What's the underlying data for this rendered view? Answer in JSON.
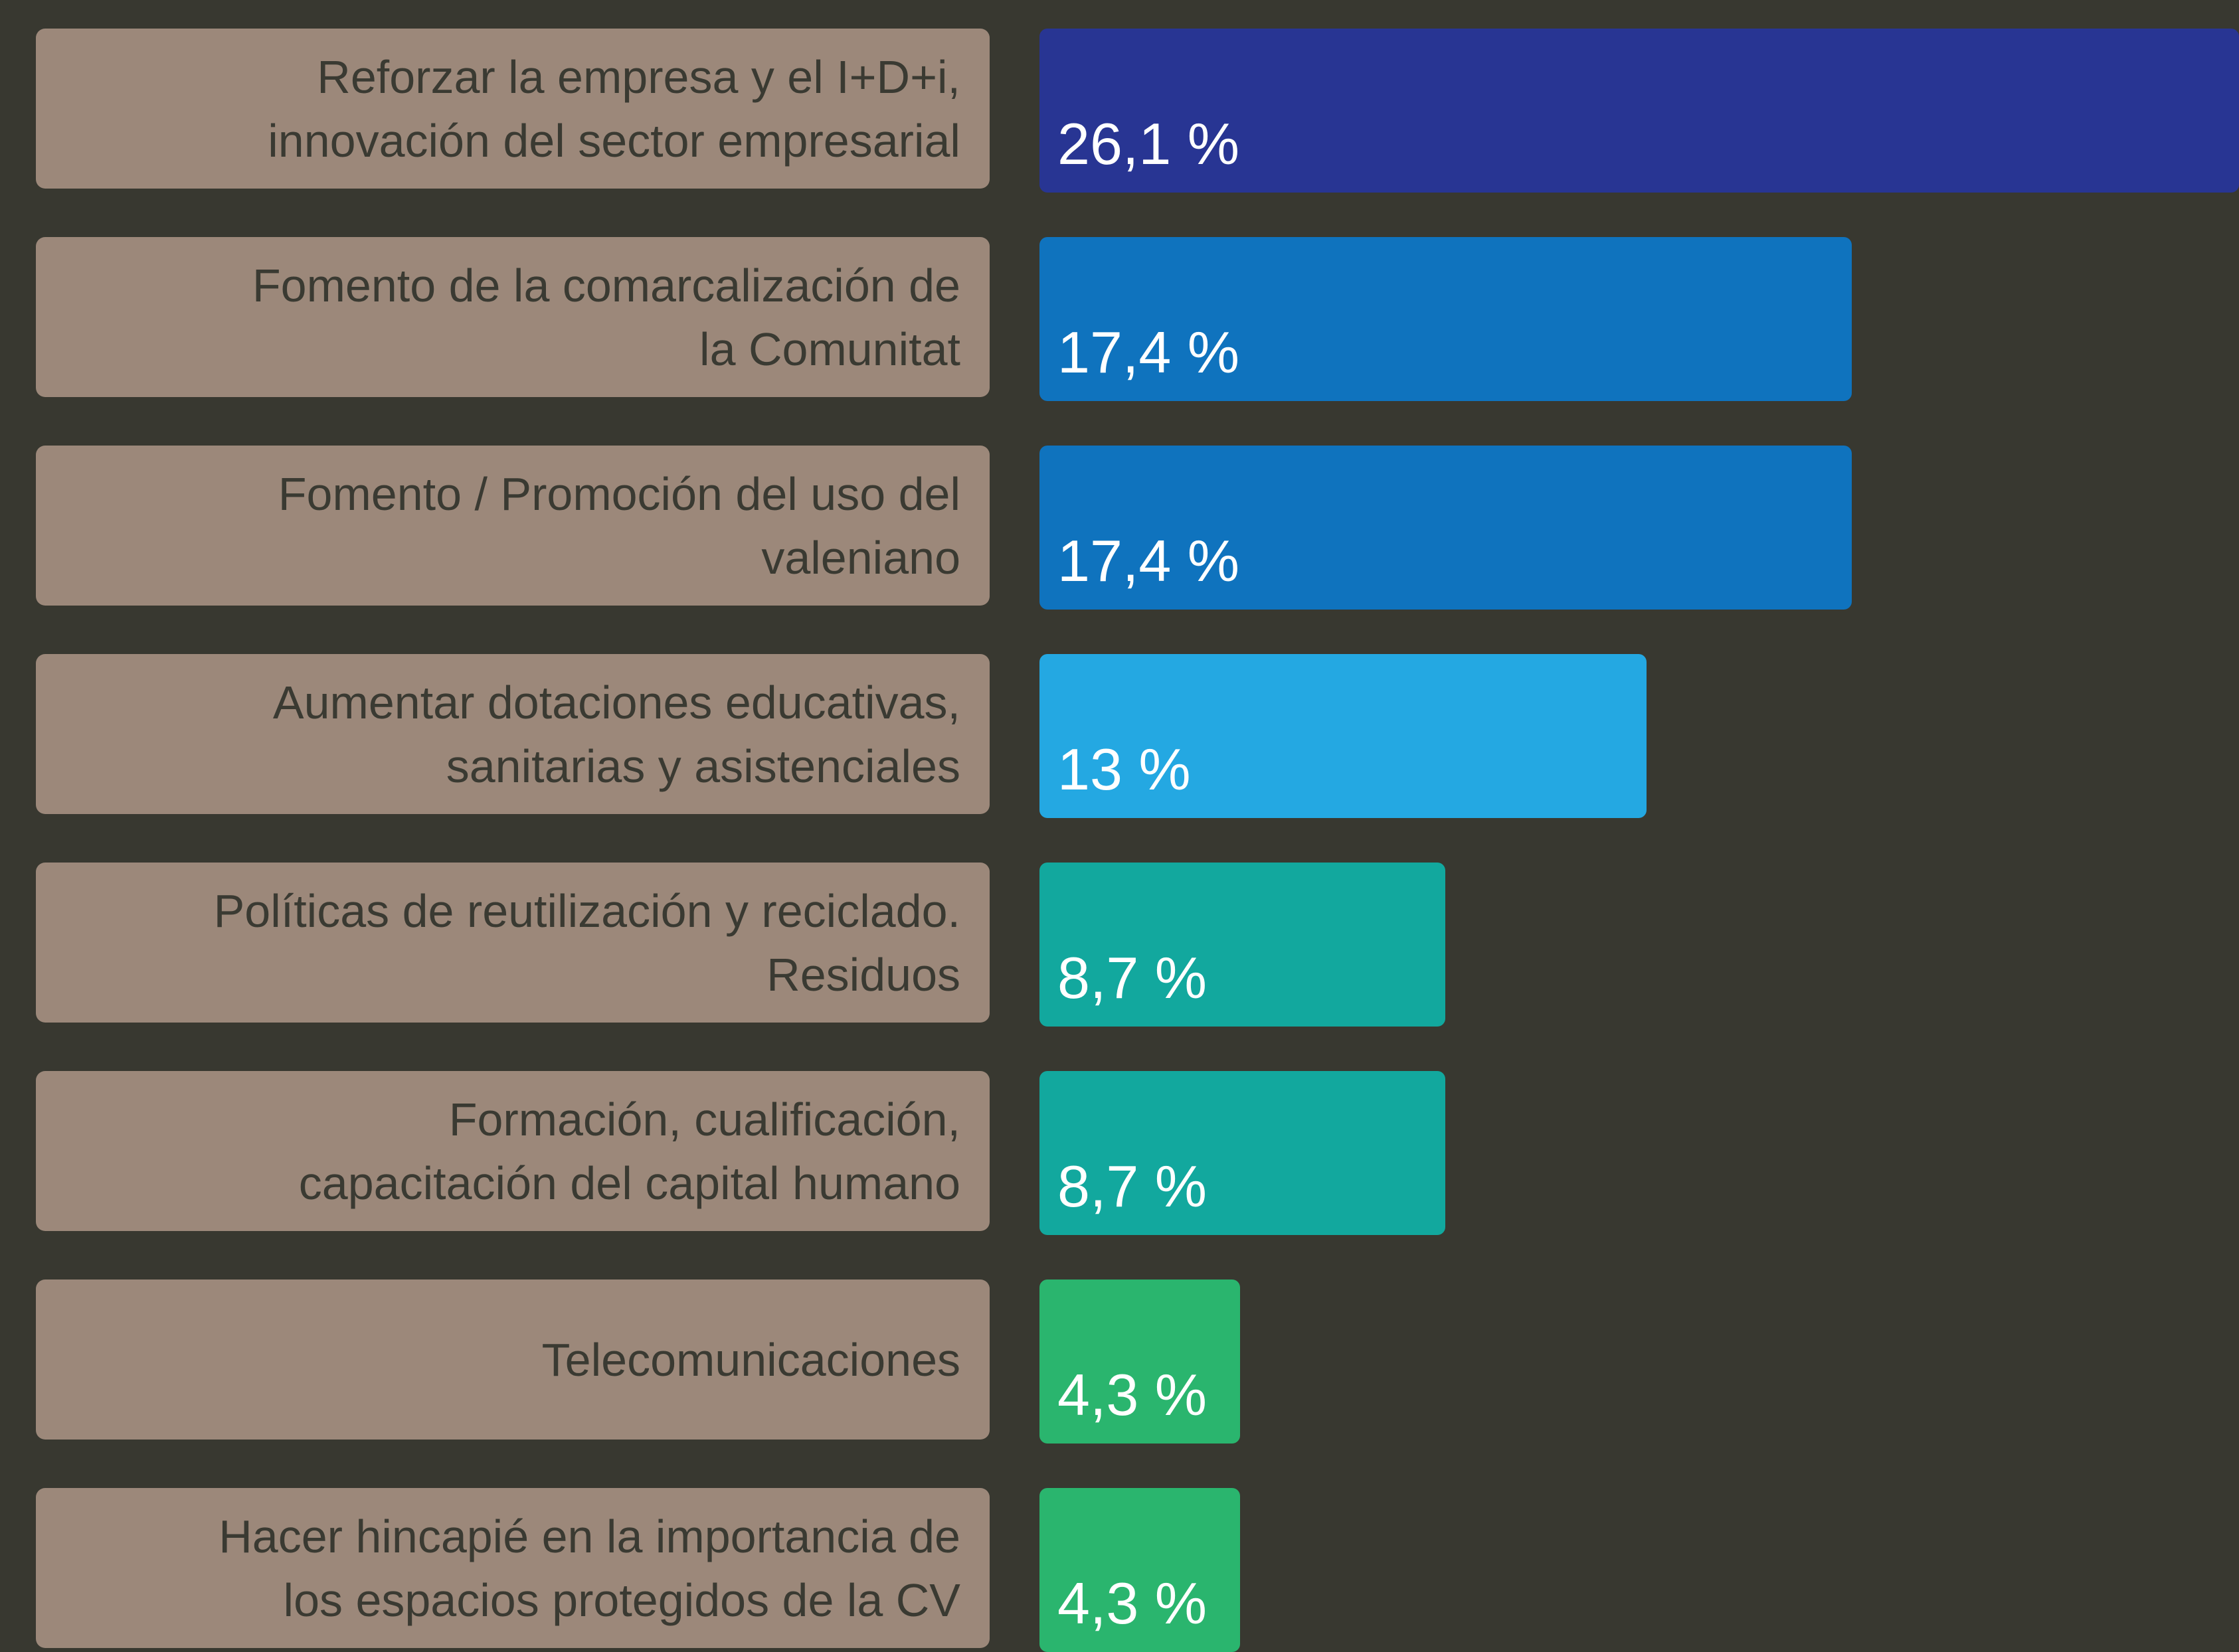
{
  "chart_data": {
    "type": "bar",
    "orientation": "horizontal",
    "categories": [
      "Reforzar la empresa y el I+D+i,\ninnovación del sector empresarial",
      "Fomento de la comarcalización de\nla Comunitat",
      "Fomento / Promoción del uso del\nvaleniano",
      "Aumentar dotaciones educativas,\nsanitarias y asistenciales",
      "Políticas de reutilización y reciclado.\nResiduos",
      "Formación, cualificación,\ncapacitación del capital humano",
      "Telecomunicaciones",
      "Hacer hincapié en la importancia de\nlos espacios protegidos de la CV"
    ],
    "values": [
      26.1,
      17.4,
      17.4,
      13,
      8.7,
      8.7,
      4.3,
      4.3
    ],
    "value_labels": [
      "26,1 %",
      "17,4 %",
      "17,4 %",
      "13 %",
      "8,7 %",
      "8,7 %",
      "4,3 %",
      "4,3 %"
    ],
    "colors": [
      "#283593",
      "#0f73be",
      "#0f73be",
      "#24a8e2",
      "#12a89e",
      "#12a89e",
      "#2ab56e",
      "#2ab56e"
    ],
    "xlim": [
      0,
      25.7
    ]
  }
}
